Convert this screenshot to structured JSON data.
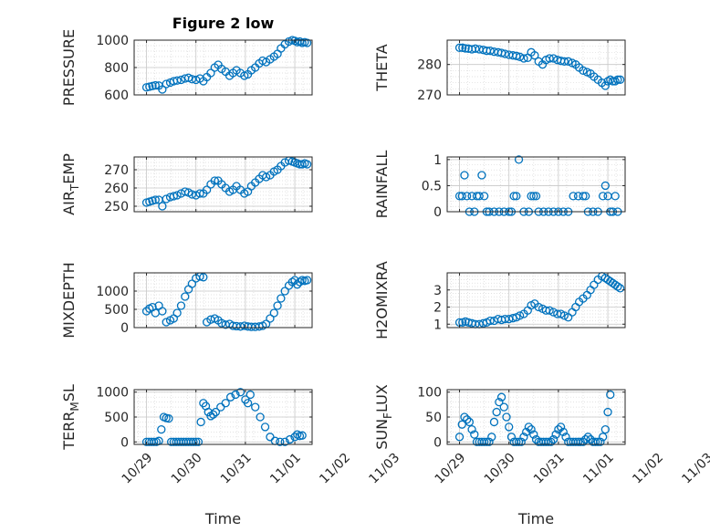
{
  "chart_data": [
    {
      "type": "scatter",
      "title": "Figure 2 low",
      "ylabel": "PRESSURE",
      "xlabel": "",
      "ylim": [
        600,
        1000
      ],
      "yticks": [
        600,
        800,
        1000
      ],
      "xlim": [
        0.75,
        4.35
      ],
      "x": [
        1.0,
        1.06,
        1.12,
        1.18,
        1.25,
        1.32,
        1.4,
        1.48,
        1.55,
        1.62,
        1.7,
        1.78,
        1.85,
        1.92,
        2.0,
        2.08,
        2.15,
        2.22,
        2.3,
        2.38,
        2.45,
        2.52,
        2.6,
        2.68,
        2.75,
        2.82,
        2.9,
        2.98,
        3.05,
        3.12,
        3.2,
        3.28,
        3.35,
        3.42,
        3.5,
        3.58,
        3.65,
        3.72,
        3.8,
        3.88,
        3.95,
        4.0,
        4.05,
        4.1,
        4.15,
        4.2,
        4.25
      ],
      "y": [
        655,
        660,
        665,
        670,
        668,
        640,
        680,
        690,
        700,
        705,
        710,
        720,
        725,
        715,
        710,
        720,
        700,
        730,
        760,
        800,
        820,
        790,
        770,
        740,
        760,
        780,
        760,
        740,
        750,
        780,
        800,
        830,
        850,
        840,
        860,
        880,
        900,
        940,
        970,
        990,
        1000,
        995,
        985,
        990,
        980,
        985,
        980
      ]
    },
    {
      "type": "scatter",
      "ylabel": "THETA",
      "xlabel": "",
      "ylim": [
        270,
        288
      ],
      "yticks": [
        270,
        280
      ],
      "xlim": [
        0.75,
        4.35
      ],
      "x": [
        1.0,
        1.06,
        1.12,
        1.18,
        1.25,
        1.32,
        1.4,
        1.48,
        1.55,
        1.62,
        1.7,
        1.78,
        1.85,
        1.92,
        2.0,
        2.08,
        2.15,
        2.22,
        2.3,
        2.38,
        2.45,
        2.52,
        2.6,
        2.68,
        2.75,
        2.82,
        2.9,
        2.98,
        3.05,
        3.12,
        3.2,
        3.28,
        3.35,
        3.42,
        3.5,
        3.58,
        3.65,
        3.72,
        3.8,
        3.88,
        3.95,
        4.0,
        4.05,
        4.1,
        4.15,
        4.2,
        4.25
      ],
      "y": [
        285.5,
        285.5,
        285.3,
        285.2,
        285.0,
        285.2,
        285.0,
        284.8,
        284.5,
        284.5,
        284.2,
        284.0,
        283.8,
        283.5,
        283.2,
        283.0,
        282.8,
        282.5,
        282.0,
        282.2,
        284.0,
        283.0,
        281.0,
        280.0,
        281.5,
        282.0,
        282.0,
        281.5,
        281.2,
        281.0,
        281.0,
        280.5,
        280.0,
        279.0,
        278.0,
        277.5,
        277.0,
        276.0,
        275.0,
        274.0,
        273.0,
        274.5,
        275.0,
        274.5,
        274.5,
        275.0,
        275.0
      ]
    },
    {
      "type": "scatter",
      "ylabel": "AIR_TEMP",
      "xlabel": "",
      "ylim": [
        247,
        277
      ],
      "yticks": [
        250,
        260,
        270
      ],
      "xlim": [
        0.75,
        4.35
      ],
      "x": [
        1.0,
        1.06,
        1.12,
        1.18,
        1.25,
        1.32,
        1.4,
        1.48,
        1.55,
        1.62,
        1.7,
        1.78,
        1.85,
        1.92,
        2.0,
        2.08,
        2.15,
        2.22,
        2.3,
        2.38,
        2.45,
        2.52,
        2.6,
        2.68,
        2.75,
        2.82,
        2.9,
        2.98,
        3.05,
        3.12,
        3.2,
        3.28,
        3.35,
        3.42,
        3.5,
        3.58,
        3.65,
        3.72,
        3.8,
        3.88,
        3.95,
        4.0,
        4.05,
        4.1,
        4.15,
        4.2,
        4.25
      ],
      "y": [
        252,
        252.5,
        253,
        253.5,
        253.5,
        250,
        254,
        255,
        255.5,
        256,
        257,
        258,
        257.5,
        256.5,
        256,
        257,
        257,
        259,
        262,
        264,
        264,
        262,
        260,
        258,
        259,
        261,
        259,
        257,
        258,
        261,
        263,
        265,
        267,
        266,
        267,
        269,
        270,
        272,
        274,
        275,
        274.5,
        274,
        273.5,
        273,
        273,
        273.5,
        273
      ]
    },
    {
      "type": "scatter",
      "ylabel": "RAINFALL",
      "xlabel": "",
      "ylim": [
        0,
        1.05
      ],
      "yticks": [
        0,
        0.5,
        1
      ],
      "xlim": [
        0.75,
        4.35
      ],
      "x": [
        1.0,
        1.05,
        1.1,
        1.15,
        1.2,
        1.25,
        1.3,
        1.35,
        1.4,
        1.45,
        1.5,
        1.55,
        1.6,
        1.7,
        1.8,
        1.9,
        2.0,
        2.05,
        2.1,
        2.15,
        2.2,
        2.3,
        2.4,
        2.45,
        2.5,
        2.55,
        2.6,
        2.7,
        2.8,
        2.9,
        3.0,
        3.1,
        3.2,
        3.3,
        3.4,
        3.5,
        3.55,
        3.6,
        3.7,
        3.8,
        3.9,
        3.95,
        4.0,
        4.05,
        4.1,
        4.15,
        4.2
      ],
      "y": [
        0.3,
        0.3,
        0.7,
        0.3,
        0.0,
        0.3,
        0.0,
        0.3,
        0.3,
        0.7,
        0.3,
        0.0,
        0.0,
        0.0,
        0.0,
        0.0,
        0.0,
        0.0,
        0.3,
        0.3,
        1.0,
        0.0,
        0.0,
        0.3,
        0.3,
        0.3,
        0.0,
        0.0,
        0.0,
        0.0,
        0.0,
        0.0,
        0.0,
        0.3,
        0.3,
        0.3,
        0.3,
        0.0,
        0.0,
        0.0,
        0.3,
        0.5,
        0.3,
        0.0,
        0.0,
        0.3,
        0.0
      ]
    },
    {
      "type": "scatter",
      "ylabel": "MIXDEPTH",
      "xlabel": "",
      "ylim": [
        0,
        1500
      ],
      "yticks": [
        0,
        500,
        1000
      ],
      "xlim": [
        0.75,
        4.35
      ],
      "x": [
        1.0,
        1.06,
        1.12,
        1.18,
        1.25,
        1.32,
        1.4,
        1.48,
        1.55,
        1.62,
        1.7,
        1.78,
        1.85,
        1.92,
        2.0,
        2.08,
        2.15,
        2.22,
        2.3,
        2.38,
        2.45,
        2.52,
        2.6,
        2.68,
        2.75,
        2.82,
        2.9,
        2.98,
        3.05,
        3.12,
        3.2,
        3.28,
        3.35,
        3.42,
        3.5,
        3.58,
        3.65,
        3.72,
        3.8,
        3.88,
        3.95,
        4.0,
        4.05,
        4.1,
        4.15,
        4.2,
        4.25
      ],
      "y": [
        450,
        520,
        560,
        400,
        600,
        450,
        150,
        200,
        250,
        400,
        600,
        850,
        1050,
        1200,
        1350,
        1400,
        1380,
        150,
        220,
        250,
        200,
        120,
        80,
        100,
        50,
        40,
        30,
        50,
        30,
        20,
        20,
        30,
        50,
        100,
        250,
        400,
        600,
        800,
        1000,
        1150,
        1250,
        1300,
        1180,
        1250,
        1300,
        1280,
        1300
      ]
    },
    {
      "type": "scatter",
      "ylabel": "H2OMIXRA",
      "xlabel": "",
      "ylim": [
        0.8,
        4.0
      ],
      "yticks": [
        1,
        2,
        3
      ],
      "xlim": [
        0.75,
        4.35
      ],
      "x": [
        1.0,
        1.06,
        1.12,
        1.18,
        1.25,
        1.32,
        1.4,
        1.48,
        1.55,
        1.62,
        1.7,
        1.78,
        1.85,
        1.92,
        2.0,
        2.08,
        2.15,
        2.22,
        2.3,
        2.38,
        2.45,
        2.52,
        2.6,
        2.68,
        2.75,
        2.82,
        2.9,
        2.98,
        3.05,
        3.12,
        3.2,
        3.28,
        3.35,
        3.42,
        3.5,
        3.58,
        3.65,
        3.72,
        3.8,
        3.88,
        3.95,
        4.0,
        4.05,
        4.1,
        4.15,
        4.2,
        4.25
      ],
      "y": [
        1.1,
        1.1,
        1.15,
        1.1,
        1.05,
        1.0,
        1.0,
        1.05,
        1.1,
        1.2,
        1.2,
        1.3,
        1.25,
        1.3,
        1.3,
        1.35,
        1.4,
        1.5,
        1.6,
        1.8,
        2.1,
        2.2,
        2.0,
        1.9,
        1.8,
        1.8,
        1.7,
        1.6,
        1.6,
        1.5,
        1.4,
        1.7,
        2.0,
        2.3,
        2.5,
        2.7,
        3.0,
        3.3,
        3.6,
        3.8,
        3.7,
        3.6,
        3.5,
        3.4,
        3.3,
        3.2,
        3.1
      ]
    },
    {
      "type": "scatter",
      "ylabel": "TERR_MSL",
      "xlabel": "Time",
      "ylim": [
        -50,
        1050
      ],
      "yticks": [
        0,
        500,
        1000
      ],
      "xlim": [
        0.75,
        4.35
      ],
      "xticks": [
        "10/29",
        "10/30",
        "10/31",
        "11/01",
        "11/02",
        "11/03"
      ],
      "x": [
        1.0,
        1.05,
        1.1,
        1.15,
        1.2,
        1.25,
        1.3,
        1.35,
        1.4,
        1.45,
        1.5,
        1.55,
        1.6,
        1.65,
        1.7,
        1.75,
        1.8,
        1.85,
        1.9,
        1.95,
        2.0,
        2.05,
        2.1,
        2.15,
        2.2,
        2.25,
        2.3,
        2.35,
        2.4,
        2.5,
        2.6,
        2.7,
        2.8,
        2.9,
        3.0,
        3.05,
        3.1,
        3.2,
        3.3,
        3.4,
        3.5,
        3.6,
        3.7,
        3.8,
        3.9,
        4.0,
        4.05,
        4.1,
        4.15
      ],
      "y": [
        0,
        0,
        0,
        0,
        0,
        20,
        250,
        500,
        480,
        470,
        0,
        0,
        0,
        0,
        0,
        0,
        0,
        0,
        0,
        0,
        0,
        0,
        400,
        780,
        720,
        600,
        520,
        550,
        600,
        700,
        780,
        900,
        950,
        1000,
        850,
        780,
        950,
        700,
        500,
        300,
        100,
        20,
        0,
        0,
        50,
        100,
        150,
        120,
        130
      ]
    },
    {
      "type": "scatter",
      "ylabel": "SUN_FLUX",
      "xlabel": "Time",
      "ylim": [
        -5,
        105
      ],
      "yticks": [
        0,
        50,
        100
      ],
      "xlim": [
        0.75,
        4.35
      ],
      "xticks": [
        "10/29",
        "10/30",
        "10/31",
        "11/01",
        "11/02",
        "11/03"
      ],
      "x": [
        1.0,
        1.05,
        1.1,
        1.15,
        1.2,
        1.25,
        1.3,
        1.35,
        1.4,
        1.45,
        1.5,
        1.55,
        1.6,
        1.65,
        1.7,
        1.75,
        1.8,
        1.85,
        1.9,
        1.95,
        2.0,
        2.05,
        2.1,
        2.15,
        2.2,
        2.25,
        2.3,
        2.35,
        2.4,
        2.45,
        2.5,
        2.55,
        2.6,
        2.65,
        2.7,
        2.75,
        2.8,
        2.85,
        2.9,
        2.95,
        3.0,
        3.05,
        3.1,
        3.15,
        3.2,
        3.25,
        3.3,
        3.35,
        3.4,
        3.45,
        3.5,
        3.55,
        3.6,
        3.65,
        3.7,
        3.75,
        3.8,
        3.85,
        3.9,
        3.95,
        4.0,
        4.05
      ],
      "y": [
        10,
        35,
        50,
        45,
        40,
        25,
        15,
        0,
        0,
        0,
        0,
        0,
        0,
        10,
        40,
        60,
        80,
        90,
        70,
        50,
        30,
        10,
        0,
        0,
        0,
        0,
        10,
        20,
        30,
        25,
        15,
        5,
        0,
        0,
        0,
        0,
        0,
        0,
        5,
        15,
        25,
        30,
        20,
        10,
        0,
        0,
        0,
        0,
        0,
        0,
        0,
        5,
        10,
        5,
        0,
        0,
        0,
        0,
        10,
        25,
        60,
        95
      ]
    }
  ]
}
